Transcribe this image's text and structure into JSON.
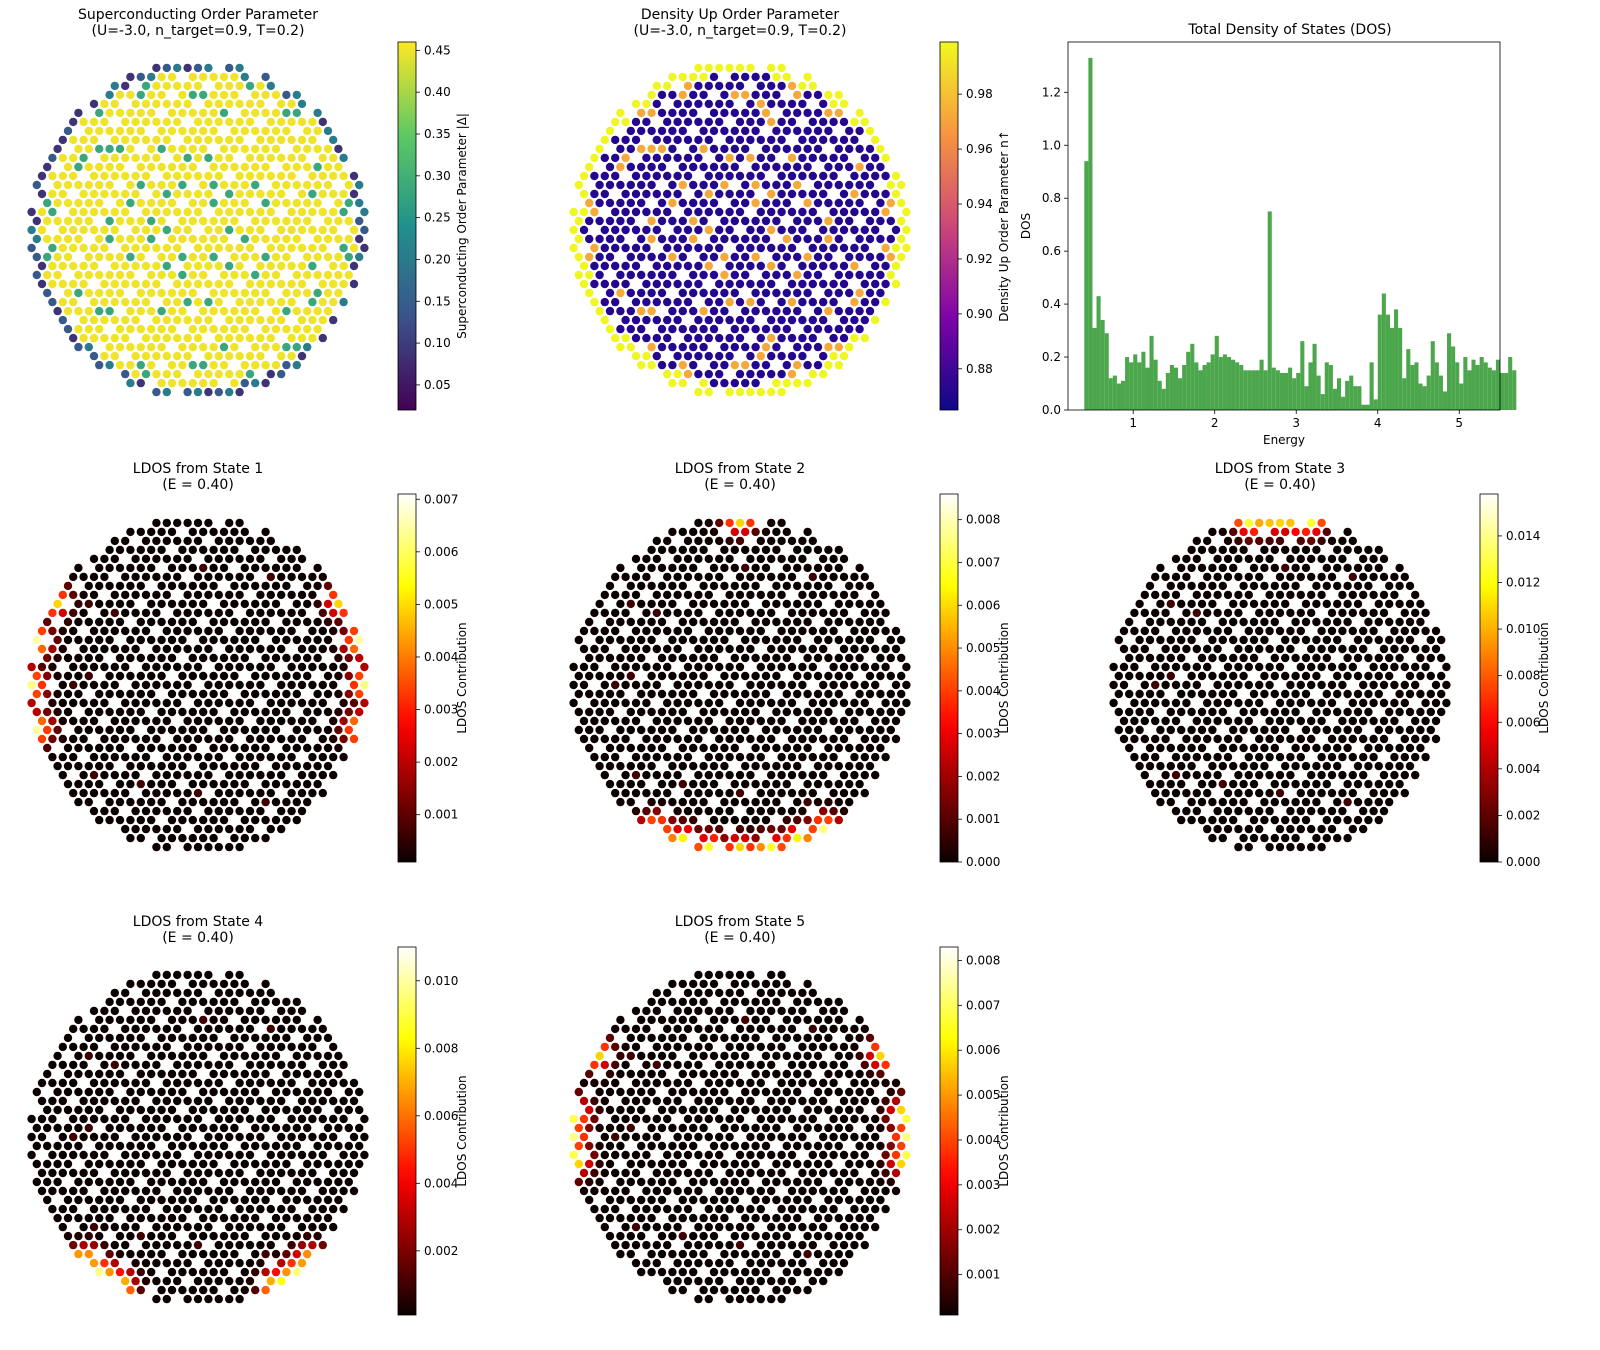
{
  "chart_data": [
    {
      "id": "sc",
      "type": "scatter",
      "title_lines": [
        "Superconducting Order Parameter",
        "(U=-3.0, n_target=0.9, T=0.2)"
      ],
      "colormap": "viridis",
      "pattern": "sc",
      "colorbar": {
        "label": "Superconducting Order Parameter |Δ|",
        "vmin": 0.02,
        "vmax": 0.46,
        "ticks": [
          0.05,
          0.1,
          0.15,
          0.2,
          0.25,
          0.3,
          0.35,
          0.4,
          0.45
        ],
        "tick_labels": [
          "0.05",
          "0.10",
          "0.15",
          "0.20",
          "0.25",
          "0.30",
          "0.35",
          "0.40",
          "0.45"
        ]
      }
    },
    {
      "id": "dens",
      "type": "scatter",
      "title_lines": [
        "Density Up Order Parameter",
        "(U=-3.0, n_target=0.9, T=0.2)"
      ],
      "colormap": "plasma",
      "pattern": "dens",
      "colorbar": {
        "label": "Density Up Order Parameter n↑",
        "vmin": 0.865,
        "vmax": 0.999,
        "ticks": [
          0.88,
          0.9,
          0.92,
          0.94,
          0.96,
          0.98
        ],
        "tick_labels": [
          "0.88",
          "0.90",
          "0.92",
          "0.94",
          "0.96",
          "0.98"
        ]
      }
    },
    {
      "id": "dos",
      "type": "bar",
      "title": "Total Density of States (DOS)",
      "xlabel": "Energy",
      "ylabel": "DOS",
      "xlim": [
        0.2,
        5.5
      ],
      "ylim": [
        0.0,
        1.39
      ],
      "xticks": [
        1,
        2,
        3,
        4,
        5
      ],
      "yticks": [
        0.0,
        0.2,
        0.4,
        0.6,
        0.8,
        1.0,
        1.2
      ],
      "ytick_labels": [
        "0.0",
        "0.2",
        "0.4",
        "0.6",
        "0.8",
        "1.0",
        "1.2"
      ],
      "bin_start": 0.4,
      "bin_width": 0.05,
      "color": "#4ca64c",
      "values": [
        0.94,
        1.33,
        0.31,
        0.43,
        0.34,
        0.29,
        0.12,
        0.13,
        0.1,
        0.11,
        0.2,
        0.18,
        0.21,
        0.18,
        0.22,
        0.16,
        0.28,
        0.19,
        0.11,
        0.08,
        0.14,
        0.17,
        0.16,
        0.12,
        0.17,
        0.22,
        0.25,
        0.18,
        0.15,
        0.17,
        0.18,
        0.21,
        0.28,
        0.2,
        0.21,
        0.2,
        0.19,
        0.18,
        0.17,
        0.15,
        0.15,
        0.15,
        0.15,
        0.19,
        0.15,
        0.75,
        0.16,
        0.15,
        0.14,
        0.14,
        0.16,
        0.12,
        0.14,
        0.26,
        0.09,
        0.18,
        0.25,
        0.13,
        0.06,
        0.18,
        0.17,
        0.08,
        0.12,
        0.05,
        0.11,
        0.13,
        0.09,
        0.09,
        0.02,
        0.02,
        0.18,
        0.04,
        0.36,
        0.44,
        0.36,
        0.31,
        0.38,
        0.31,
        0.12,
        0.23,
        0.17,
        0.18,
        0.1,
        0.09,
        0.13,
        0.26,
        0.18,
        0.13,
        0.07,
        0.29,
        0.24,
        0.18,
        0.1,
        0.2,
        0.15,
        0.19,
        0.17,
        0.2,
        0.18,
        0.16,
        0.15,
        0.19,
        0.14,
        0.14,
        0.2,
        0.15
      ],
      "grid": false
    },
    {
      "id": "ldos1",
      "type": "scatter",
      "title_lines": [
        "LDOS from State 1",
        "(E = 0.40)"
      ],
      "colormap": "hot",
      "pattern": "ldos",
      "hotspots_deg": [
        150,
        165,
        180,
        195,
        30,
        15,
        0,
        -15
      ],
      "colorbar": {
        "label": "LDOS Contribution",
        "vmin": 0.0001,
        "vmax": 0.0071,
        "ticks": [
          0.001,
          0.002,
          0.003,
          0.004,
          0.005,
          0.006,
          0.007
        ],
        "tick_labels": [
          "0.001",
          "0.002",
          "0.003",
          "0.004",
          "0.005",
          "0.006",
          "0.007"
        ]
      }
    },
    {
      "id": "ldos2",
      "type": "scatter",
      "title_lines": [
        "LDOS from State 2",
        "(E = 0.40)"
      ],
      "colormap": "hot",
      "pattern": "ldos",
      "hotspots_deg": [
        -60,
        -70,
        -80,
        -90,
        -100,
        -110,
        -120,
        90
      ],
      "colorbar": {
        "label": "LDOS Contribution",
        "vmin": 0.0,
        "vmax": 0.0086,
        "ticks": [
          0,
          0.001,
          0.002,
          0.003,
          0.004,
          0.005,
          0.006,
          0.007,
          0.008
        ],
        "tick_labels": [
          "0.000",
          "0.001",
          "0.002",
          "0.003",
          "0.004",
          "0.005",
          "0.006",
          "0.007",
          "0.008"
        ]
      }
    },
    {
      "id": "ldos3",
      "type": "scatter",
      "title_lines": [
        "LDOS from State 3",
        "(E = 0.40)"
      ],
      "colormap": "hot",
      "pattern": "ldos",
      "hotspots_deg": [
        80,
        90,
        100,
        95,
        85
      ],
      "colorbar": {
        "label": "LDOS Contribution",
        "vmin": 0.0,
        "vmax": 0.0158,
        "ticks": [
          0,
          0.002,
          0.004,
          0.006,
          0.008,
          0.01,
          0.012,
          0.014
        ],
        "tick_labels": [
          "0.000",
          "0.002",
          "0.004",
          "0.006",
          "0.008",
          "0.010",
          "0.012",
          "0.014"
        ]
      }
    },
    {
      "id": "ldos4",
      "type": "scatter",
      "title_lines": [
        "LDOS from State 4",
        "(E = 0.40)"
      ],
      "colormap": "hot",
      "pattern": "ldos",
      "hotspots_deg": [
        -125,
        -118,
        -132,
        -55,
        -62,
        -48
      ],
      "colorbar": {
        "label": "LDOS Contribution",
        "vmin": 0.0001,
        "vmax": 0.011,
        "ticks": [
          0.002,
          0.004,
          0.006,
          0.008,
          0.01
        ],
        "tick_labels": [
          "0.002",
          "0.004",
          "0.006",
          "0.008",
          "0.010"
        ]
      }
    },
    {
      "id": "ldos5",
      "type": "scatter",
      "title_lines": [
        "LDOS from State 5",
        "(E = 0.40)"
      ],
      "colormap": "hot",
      "pattern": "ldos",
      "hotspots_deg": [
        180,
        172,
        188,
        150,
        0,
        8,
        -8,
        30
      ],
      "colorbar": {
        "label": "LDOS Contribution",
        "vmin": 0.0001,
        "vmax": 0.0083,
        "ticks": [
          0.001,
          0.002,
          0.003,
          0.004,
          0.005,
          0.006,
          0.007,
          0.008
        ],
        "tick_labels": [
          "0.001",
          "0.002",
          "0.003",
          "0.004",
          "0.005",
          "0.006",
          "0.007",
          "0.008"
        ]
      }
    }
  ]
}
